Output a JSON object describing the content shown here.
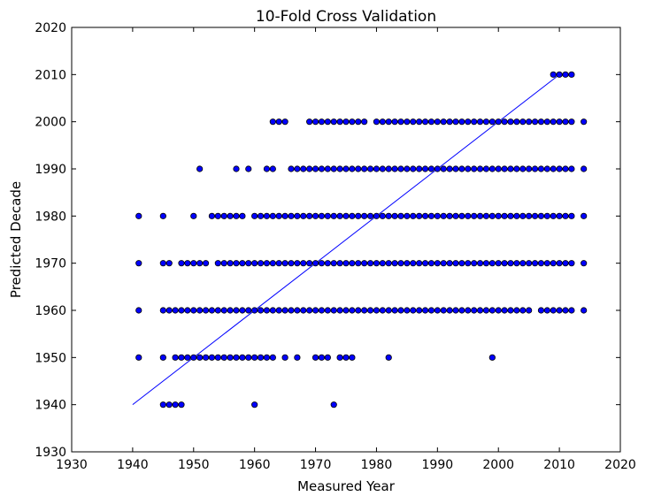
{
  "chart_data": {
    "type": "scatter",
    "title": "10-Fold Cross Validation",
    "xlabel": "Measured Year",
    "ylabel": "Predicted Decade",
    "xlim": [
      1930,
      2020
    ],
    "ylim": [
      1930,
      2020
    ],
    "xticks": [
      "1930",
      "1940",
      "1950",
      "1960",
      "1970",
      "1980",
      "1990",
      "2000",
      "2010",
      "2020"
    ],
    "yticks": [
      "1930",
      "1940",
      "1950",
      "1960",
      "1970",
      "1980",
      "1990",
      "2000",
      "2010",
      "2020"
    ],
    "grid": false,
    "colors": {
      "point_fill": "#0000ff",
      "point_stroke": "#000000",
      "line": "#0000ff"
    },
    "reference_line": {
      "x": [
        1940,
        2010
      ],
      "y": [
        1940,
        2010
      ]
    },
    "points_by_decade": [
      {
        "y": 2010,
        "x": [
          2009,
          2010,
          2011,
          2012
        ]
      },
      {
        "y": 2000,
        "x": [
          1963,
          1964,
          1965,
          1969,
          1970,
          1971,
          1972,
          1973,
          1974,
          1975,
          1976,
          1977,
          1978,
          1980,
          1981,
          1982,
          1983,
          1984,
          1985,
          1986,
          1987,
          1988,
          1989,
          1990,
          1991,
          1992,
          1993,
          1994,
          1995,
          1996,
          1997,
          1998,
          1999,
          2000,
          2001,
          2002,
          2003,
          2004,
          2005,
          2006,
          2007,
          2008,
          2009,
          2010,
          2011,
          2012,
          2014
        ]
      },
      {
        "y": 1990,
        "x": [
          1951,
          1957,
          1959,
          1962,
          1963,
          1966,
          1967,
          1968,
          1969,
          1970,
          1971,
          1972,
          1973,
          1974,
          1975,
          1976,
          1977,
          1978,
          1979,
          1980,
          1981,
          1982,
          1983,
          1984,
          1985,
          1986,
          1987,
          1988,
          1989,
          1990,
          1991,
          1992,
          1993,
          1994,
          1995,
          1996,
          1997,
          1998,
          1999,
          2000,
          2001,
          2002,
          2003,
          2004,
          2005,
          2006,
          2007,
          2008,
          2009,
          2010,
          2011,
          2012,
          2014
        ]
      },
      {
        "y": 1980,
        "x": [
          1941,
          1945,
          1950,
          1953,
          1954,
          1955,
          1956,
          1957,
          1958,
          1960,
          1961,
          1962,
          1963,
          1964,
          1965,
          1966,
          1967,
          1968,
          1969,
          1970,
          1971,
          1972,
          1973,
          1974,
          1975,
          1976,
          1977,
          1978,
          1979,
          1980,
          1981,
          1982,
          1983,
          1984,
          1985,
          1986,
          1987,
          1988,
          1989,
          1990,
          1991,
          1992,
          1993,
          1994,
          1995,
          1996,
          1997,
          1998,
          1999,
          2000,
          2001,
          2002,
          2003,
          2004,
          2005,
          2006,
          2007,
          2008,
          2009,
          2010,
          2011,
          2012,
          2014
        ]
      },
      {
        "y": 1970,
        "x": [
          1941,
          1945,
          1946,
          1948,
          1949,
          1950,
          1951,
          1952,
          1954,
          1955,
          1956,
          1957,
          1958,
          1959,
          1960,
          1961,
          1962,
          1963,
          1964,
          1965,
          1966,
          1967,
          1968,
          1969,
          1970,
          1971,
          1972,
          1973,
          1974,
          1975,
          1976,
          1977,
          1978,
          1979,
          1980,
          1981,
          1982,
          1983,
          1984,
          1985,
          1986,
          1987,
          1988,
          1989,
          1990,
          1991,
          1992,
          1993,
          1994,
          1995,
          1996,
          1997,
          1998,
          1999,
          2000,
          2001,
          2002,
          2003,
          2004,
          2005,
          2006,
          2007,
          2008,
          2009,
          2010,
          2011,
          2012,
          2014
        ]
      },
      {
        "y": 1960,
        "x": [
          1941,
          1945,
          1946,
          1947,
          1948,
          1949,
          1950,
          1951,
          1952,
          1953,
          1954,
          1955,
          1956,
          1957,
          1958,
          1959,
          1960,
          1961,
          1962,
          1963,
          1964,
          1965,
          1966,
          1967,
          1968,
          1969,
          1970,
          1971,
          1972,
          1973,
          1974,
          1975,
          1976,
          1977,
          1978,
          1979,
          1980,
          1981,
          1982,
          1983,
          1984,
          1985,
          1986,
          1987,
          1988,
          1989,
          1990,
          1991,
          1992,
          1993,
          1994,
          1995,
          1996,
          1997,
          1998,
          1999,
          2000,
          2001,
          2002,
          2003,
          2004,
          2005,
          2007,
          2008,
          2009,
          2010,
          2011,
          2012,
          2014
        ]
      },
      {
        "y": 1950,
        "x": [
          1941,
          1945,
          1947,
          1948,
          1949,
          1950,
          1951,
          1952,
          1953,
          1954,
          1955,
          1956,
          1957,
          1958,
          1959,
          1960,
          1961,
          1962,
          1963,
          1965,
          1967,
          1970,
          1971,
          1972,
          1974,
          1975,
          1976,
          1982,
          1999
        ]
      },
      {
        "y": 1940,
        "x": [
          1945,
          1946,
          1947,
          1948,
          1960,
          1973
        ]
      }
    ]
  }
}
